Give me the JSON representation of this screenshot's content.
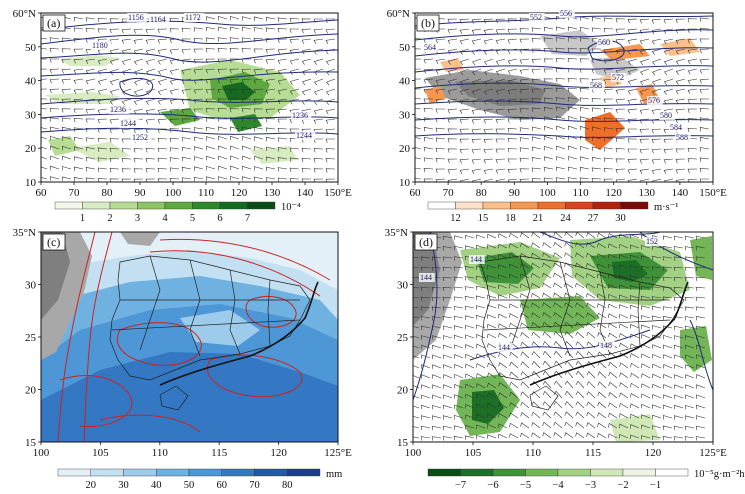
{
  "panels": [
    {
      "label": "(a)",
      "y_ticks": [
        "60°N",
        "50",
        "40",
        "30",
        "20",
        "10"
      ],
      "x_ticks": [
        "60",
        "70",
        "80",
        "90",
        "100",
        "110",
        "120",
        "130",
        "140",
        "150°E"
      ],
      "contour_labels": [
        "1156",
        "1164",
        "1172",
        "1180",
        "1236",
        "1244",
        "1252",
        "1236",
        "1244"
      ],
      "colorbar": {
        "ticks": [
          "1",
          "2",
          "3",
          "4",
          "5",
          "6",
          "7"
        ],
        "unit": "10⁻⁴",
        "colors": [
          "#f1f7e9",
          "#d8ecc2",
          "#b7dc93",
          "#8cc467",
          "#5ea842",
          "#2f872c",
          "#146a1f",
          "#0a4d15"
        ]
      }
    },
    {
      "label": "(b)",
      "y_ticks": [
        "60°N",
        "50",
        "40",
        "30",
        "20",
        "10"
      ],
      "x_ticks": [
        "60",
        "70",
        "80",
        "90",
        "100",
        "110",
        "120",
        "130",
        "140",
        "150°E"
      ],
      "contour_labels": [
        "552",
        "556",
        "560",
        "564",
        "568",
        "572",
        "576",
        "580",
        "584",
        "588"
      ],
      "colorbar": {
        "ticks": [
          "12",
          "15",
          "18",
          "21",
          "24",
          "27",
          "30"
        ],
        "unit": "m·s⁻¹",
        "colors": [
          "#ffffff",
          "#fde2c9",
          "#fbbf8c",
          "#f7974f",
          "#ee6e2a",
          "#d8441b",
          "#b3200f",
          "#7a0a06"
        ]
      }
    },
    {
      "label": "(c)",
      "y_ticks": [
        "35°N",
        "30",
        "25",
        "20",
        "15"
      ],
      "x_ticks": [
        "100",
        "105",
        "110",
        "115",
        "120",
        "125°E"
      ],
      "colorbar": {
        "ticks": [
          "20",
          "30",
          "40",
          "50",
          "60",
          "70",
          "80"
        ],
        "unit": "mm",
        "colors": [
          "#e4f0f8",
          "#c3e0f2",
          "#9ccbeb",
          "#6fb1e0",
          "#4d97d6",
          "#3478c4",
          "#2458ad",
          "#1a3d92"
        ]
      }
    },
    {
      "label": "(d)",
      "y_ticks": [
        "35°N",
        "30",
        "25",
        "20",
        "15"
      ],
      "x_ticks": [
        "100",
        "105",
        "110",
        "115",
        "120",
        "125°E"
      ],
      "contour_labels": [
        "144",
        "144",
        "144",
        "148",
        "152"
      ],
      "colorbar": {
        "ticks": [
          "−7",
          "−6",
          "−5",
          "−4",
          "−3",
          "−2",
          "−1"
        ],
        "unit": "10⁻⁵g·m⁻²hpa⁻¹·s⁻¹",
        "colors": [
          "#0a4d15",
          "#1d6f25",
          "#3f9238",
          "#72b657",
          "#a3d184",
          "#cfe8b6",
          "#ecf5e1",
          "#ffffff"
        ]
      }
    }
  ]
}
